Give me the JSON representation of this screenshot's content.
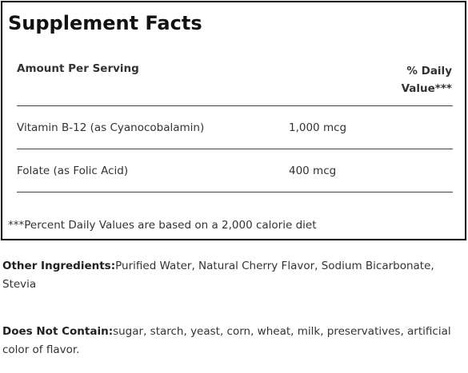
{
  "supplement_facts": {
    "title": "Supplement Facts",
    "amount_per_serving_label": "Amount Per Serving",
    "daily_value_label_line1": "% Daily",
    "daily_value_label_line2": "Value***",
    "nutrients": [
      {
        "name": "Vitamin B-12 (as Cyanocobalamin)",
        "amount": "1,000 mcg"
      },
      {
        "name": "Folate (as Folic Acid)",
        "amount": "400 mcg"
      }
    ],
    "footnote": "***Percent Daily Values are based on a 2,000 calorie diet"
  },
  "other_ingredients": {
    "label": "Other Ingredients:",
    "text": "Purified Water, Natural Cherry Flavor, Sodium Bicarbonate, Stevia"
  },
  "does_not_contain": {
    "label": "Does Not Contain:",
    "text": "sugar, starch, yeast, corn, wheat, milk, preservatives, artificial color of flavor."
  }
}
